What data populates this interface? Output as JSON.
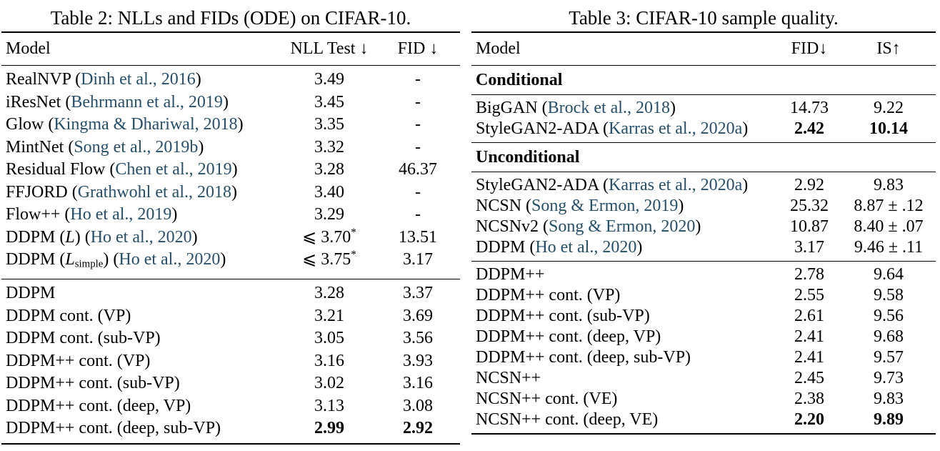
{
  "page": {
    "background": "#ffffff",
    "text_color": "#000000",
    "citation_color": "#254F6B"
  },
  "table2": {
    "title": "Table 2: NLLs and FIDs (ODE) on CIFAR-10.",
    "headers": [
      "Model",
      "NLL Test ↓",
      "FID ↓"
    ],
    "groups": [
      {
        "rows": [
          {
            "model": [
              {
                "t": "t",
                "v": "RealNVP ("
              },
              {
                "t": "cite",
                "v": "Dinh et al., 2016"
              },
              {
                "t": "t",
                "v": ")"
              }
            ],
            "v1": {
              "text": "3.49"
            },
            "v2": {
              "text": "-"
            }
          },
          {
            "model": [
              {
                "t": "t",
                "v": "iResNet ("
              },
              {
                "t": "cite",
                "v": "Behrmann et al., 2019"
              },
              {
                "t": "t",
                "v": ")"
              }
            ],
            "v1": {
              "text": "3.45"
            },
            "v2": {
              "text": "-"
            }
          },
          {
            "model": [
              {
                "t": "t",
                "v": "Glow ("
              },
              {
                "t": "cite",
                "v": "Kingma & Dhariwal, 2018"
              },
              {
                "t": "t",
                "v": ")"
              }
            ],
            "v1": {
              "text": "3.35"
            },
            "v2": {
              "text": "-"
            }
          },
          {
            "model": [
              {
                "t": "t",
                "v": "MintNet ("
              },
              {
                "t": "cite",
                "v": "Song et al., 2019b"
              },
              {
                "t": "t",
                "v": ")"
              }
            ],
            "v1": {
              "text": "3.32"
            },
            "v2": {
              "text": "-"
            }
          },
          {
            "model": [
              {
                "t": "t",
                "v": "Residual Flow ("
              },
              {
                "t": "cite",
                "v": "Chen et al., 2019"
              },
              {
                "t": "t",
                "v": ")"
              }
            ],
            "v1": {
              "text": "3.28"
            },
            "v2": {
              "text": "46.37"
            }
          },
          {
            "model": [
              {
                "t": "t",
                "v": "FFJORD ("
              },
              {
                "t": "cite",
                "v": "Grathwohl et al., 2018"
              },
              {
                "t": "t",
                "v": ")"
              }
            ],
            "v1": {
              "text": "3.40"
            },
            "v2": {
              "text": "-"
            }
          },
          {
            "model": [
              {
                "t": "t",
                "v": "Flow++ ("
              },
              {
                "t": "cite",
                "v": "Ho et al., 2019"
              },
              {
                "t": "t",
                "v": ")"
              }
            ],
            "v1": {
              "text": "3.29"
            },
            "v2": {
              "text": "-"
            }
          },
          {
            "model": [
              {
                "t": "t",
                "v": "DDPM ("
              },
              {
                "t": "i",
                "v": "L"
              },
              {
                "t": "t",
                "v": ") ("
              },
              {
                "t": "cite",
                "v": "Ho et al., 2020"
              },
              {
                "t": "t",
                "v": ")"
              }
            ],
            "v1": {
              "pre": "⩽ ",
              "text": "3.70",
              "sup": "*"
            },
            "v2": {
              "text": "13.51"
            }
          },
          {
            "model": [
              {
                "t": "t",
                "v": "DDPM ("
              },
              {
                "t": "i",
                "v": "L"
              },
              {
                "t": "sub",
                "v": "simple"
              },
              {
                "t": "t",
                "v": ") ("
              },
              {
                "t": "cite",
                "v": "Ho et al., 2020"
              },
              {
                "t": "t",
                "v": ")"
              }
            ],
            "v1": {
              "pre": "⩽ ",
              "text": "3.75",
              "sup": "*"
            },
            "v2": {
              "text": "3.17"
            }
          }
        ]
      },
      {
        "rows": [
          {
            "model": [
              {
                "t": "t",
                "v": "DDPM"
              }
            ],
            "v1": {
              "text": "3.28"
            },
            "v2": {
              "text": "3.37"
            }
          },
          {
            "model": [
              {
                "t": "t",
                "v": "DDPM cont. (VP)"
              }
            ],
            "v1": {
              "text": "3.21"
            },
            "v2": {
              "text": "3.69"
            }
          },
          {
            "model": [
              {
                "t": "t",
                "v": "DDPM cont. (sub-VP)"
              }
            ],
            "v1": {
              "text": "3.05"
            },
            "v2": {
              "text": "3.56"
            }
          },
          {
            "model": [
              {
                "t": "t",
                "v": "DDPM++ cont. (VP)"
              }
            ],
            "v1": {
              "text": "3.16"
            },
            "v2": {
              "text": "3.93"
            }
          },
          {
            "model": [
              {
                "t": "t",
                "v": "DDPM++ cont. (sub-VP)"
              }
            ],
            "v1": {
              "text": "3.02"
            },
            "v2": {
              "text": "3.16"
            }
          },
          {
            "model": [
              {
                "t": "t",
                "v": "DDPM++ cont. (deep, VP)"
              }
            ],
            "v1": {
              "text": "3.13"
            },
            "v2": {
              "text": "3.08"
            }
          },
          {
            "model": [
              {
                "t": "t",
                "v": "DDPM++ cont. (deep, sub-VP)"
              }
            ],
            "v1": {
              "text": "2.99",
              "bold": true
            },
            "v2": {
              "text": "2.92",
              "bold": true
            }
          }
        ]
      }
    ]
  },
  "table3": {
    "title": "Table 3: CIFAR-10 sample quality.",
    "headers": [
      "Model",
      "FID↓",
      "IS↑"
    ],
    "groups": [
      {
        "section": "Conditional",
        "rows": []
      },
      {
        "rows": [
          {
            "model": [
              {
                "t": "t",
                "v": "BigGAN ("
              },
              {
                "t": "cite",
                "v": "Brock et al., 2018"
              },
              {
                "t": "t",
                "v": ")"
              }
            ],
            "v1": {
              "text": "14.73"
            },
            "v2": {
              "text": "9.22"
            }
          },
          {
            "model": [
              {
                "t": "t",
                "v": "StyleGAN2-ADA ("
              },
              {
                "t": "cite",
                "v": "Karras et al., 2020a"
              },
              {
                "t": "t",
                "v": ")"
              }
            ],
            "v1": {
              "text": "2.42",
              "bold": true
            },
            "v2": {
              "text": "10.14",
              "bold": true
            }
          }
        ]
      },
      {
        "section": "Unconditional",
        "rows": []
      },
      {
        "rows": [
          {
            "model": [
              {
                "t": "t",
                "v": "StyleGAN2-ADA ("
              },
              {
                "t": "cite",
                "v": "Karras et al., 2020a"
              },
              {
                "t": "t",
                "v": ")"
              }
            ],
            "v1": {
              "text": "2.92"
            },
            "v2": {
              "text": "9.83"
            }
          },
          {
            "model": [
              {
                "t": "t",
                "v": "NCSN ("
              },
              {
                "t": "cite",
                "v": "Song & Ermon, 2019"
              },
              {
                "t": "t",
                "v": ")"
              }
            ],
            "v1": {
              "text": "25.32"
            },
            "v2": {
              "text": "8.87 ± .12"
            }
          },
          {
            "model": [
              {
                "t": "t",
                "v": "NCSNv2 ("
              },
              {
                "t": "cite",
                "v": "Song & Ermon, 2020"
              },
              {
                "t": "t",
                "v": ")"
              }
            ],
            "v1": {
              "text": "10.87"
            },
            "v2": {
              "text": "8.40 ± .07"
            }
          },
          {
            "model": [
              {
                "t": "t",
                "v": "DDPM ("
              },
              {
                "t": "cite",
                "v": "Ho et al., 2020"
              },
              {
                "t": "t",
                "v": ")"
              }
            ],
            "v1": {
              "text": "3.17"
            },
            "v2": {
              "text": "9.46 ± .11"
            }
          }
        ]
      },
      {
        "rows": [
          {
            "model": [
              {
                "t": "t",
                "v": "DDPM++"
              }
            ],
            "v1": {
              "text": "2.78"
            },
            "v2": {
              "text": "9.64"
            }
          },
          {
            "model": [
              {
                "t": "t",
                "v": "DDPM++ cont. (VP)"
              }
            ],
            "v1": {
              "text": "2.55"
            },
            "v2": {
              "text": "9.58"
            }
          },
          {
            "model": [
              {
                "t": "t",
                "v": "DDPM++ cont. (sub-VP)"
              }
            ],
            "v1": {
              "text": "2.61"
            },
            "v2": {
              "text": "9.56"
            }
          },
          {
            "model": [
              {
                "t": "t",
                "v": "DDPM++ cont. (deep, VP)"
              }
            ],
            "v1": {
              "text": "2.41"
            },
            "v2": {
              "text": "9.68"
            }
          },
          {
            "model": [
              {
                "t": "t",
                "v": "DDPM++ cont. (deep, sub-VP)"
              }
            ],
            "v1": {
              "text": "2.41"
            },
            "v2": {
              "text": "9.57"
            }
          },
          {
            "model": [
              {
                "t": "t",
                "v": "NCSN++"
              }
            ],
            "v1": {
              "text": "2.45"
            },
            "v2": {
              "text": "9.73"
            }
          },
          {
            "model": [
              {
                "t": "t",
                "v": "NCSN++ cont. (VE)"
              }
            ],
            "v1": {
              "text": "2.38"
            },
            "v2": {
              "text": "9.83"
            }
          },
          {
            "model": [
              {
                "t": "t",
                "v": "NCSN++ cont. (deep, VE)"
              }
            ],
            "v1": {
              "text": "2.20",
              "bold": true
            },
            "v2": {
              "text": "9.89",
              "bold": true
            }
          }
        ]
      }
    ]
  }
}
